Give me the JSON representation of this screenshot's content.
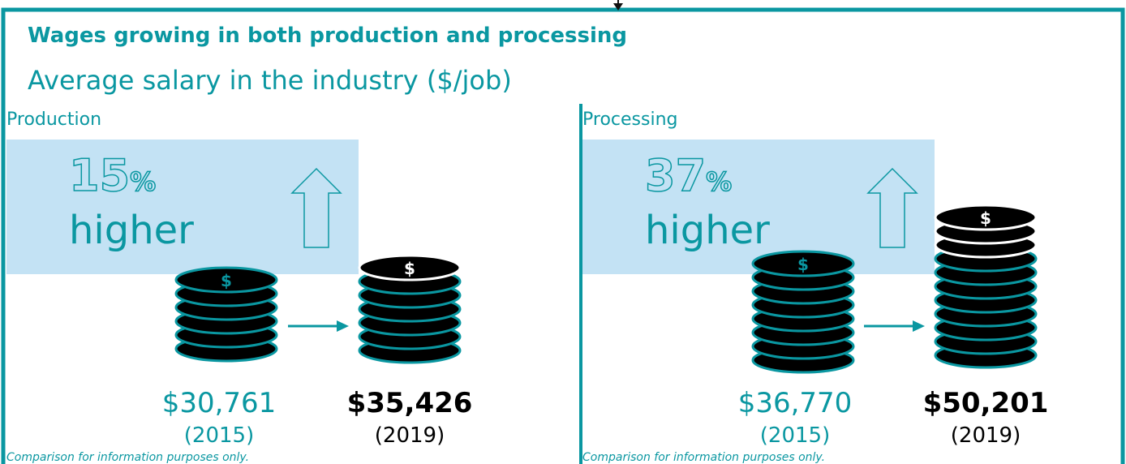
{
  "title": "Wages growing in both production and processing",
  "subtitle": "Average salary in the industry ($/job)",
  "panels": [
    {
      "label": "Production",
      "percent": "15",
      "percent_sign": "%",
      "change": "higher",
      "before_value": "$30,761",
      "before_year": "(2015)",
      "after_value": "$35,426",
      "after_year": "(2019)",
      "note": "Comparison for information purposes only."
    },
    {
      "label": "Processing",
      "percent": "37",
      "percent_sign": "%",
      "change": "higher",
      "before_value": "$36,770",
      "before_year": "(2015)",
      "after_value": "$50,201",
      "after_year": "(2019)",
      "note": "Comparison for information purposes only."
    }
  ]
}
